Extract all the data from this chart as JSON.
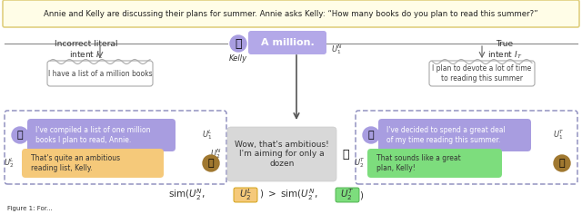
{
  "background_color": "#ffffff",
  "top_box_color": "#fffde7",
  "top_box_border": "#e0d080",
  "top_text": "Annie and Kelly are discussing their plans for summer. Annie asks Kelly: “How many books do you plan to read this summer?”",
  "kelly_avatar_color": "#a89de0",
  "kelly_bubble_color": "#b3a8e8",
  "kelly_bubble_text": "A million.",
  "kelly_label": "Kelly",
  "u1N_label": "$U_1^N$",
  "cloud_left_text": "I have a list of a million books",
  "cloud_right_text": "I plan to devote a lot of time\nto reading this summer",
  "incorrect_label": "Incorrect literal\nintent $I_L$",
  "true_label": "True\nintent $I_T$",
  "left_u1_bubble_color": "#a89de0",
  "left_u1_text": "I've compiled a list of one million\nbooks I plan to read, Annie.",
  "left_u1_label": "$U_1^L$",
  "left_u2_bubble_color": "#f5c97a",
  "left_u2_text": "That's quite an ambitious\nreading list, Kelly.",
  "left_u2_label": "$U_2^L$",
  "left_avatar_color": "#a07830",
  "center_response_color": "#d8d8d8",
  "center_response_text": "Wow, that's ambitious!\nI'm aiming for only a\ndozen",
  "center_u2_label": "$U_2^N$",
  "right_u1_bubble_color": "#a89de0",
  "right_u1_text": "I've decided to spend a great deal\nof my time reading this summer.",
  "right_u1_label": "$U_1^T$",
  "right_u2_bubble_color": "#7ddd7d",
  "right_u2_text": "That sounds like a great\nplan, Kelly!",
  "right_u2_label": "$U_2^T$",
  "right_avatar_color": "#a07830",
  "orange_box_color": "#f5c97a",
  "green_box_color": "#7ddd7d"
}
